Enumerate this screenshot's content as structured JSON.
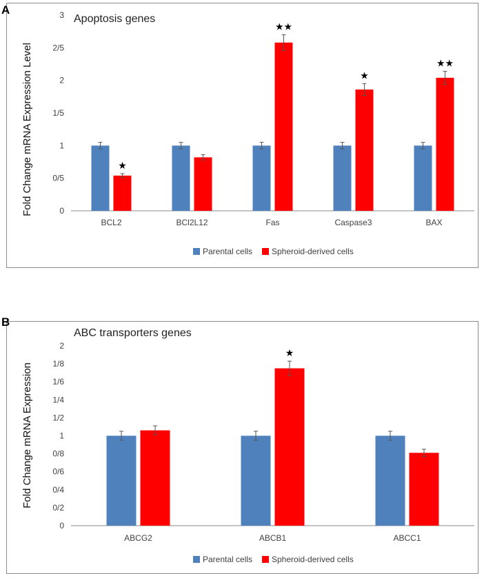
{
  "colors": {
    "parental": "#4f81bd",
    "spheroid": "#ff0000",
    "error": "#555555",
    "axis": "#888888",
    "text": "#404040"
  },
  "chart_data": [
    {
      "panel": "A",
      "type": "bar",
      "title": "Apoptosis genes",
      "xlabel": "",
      "ylabel": "Fold Change mRNA Expression Level",
      "categories": [
        "BCL2",
        "BCl2L12",
        "Fas",
        "Caspase3",
        "BAX"
      ],
      "ylim": [
        0,
        3
      ],
      "yticks": [
        0,
        0.5,
        1,
        1.5,
        2,
        2.5,
        3
      ],
      "ytick_labels": [
        "0",
        "0/5",
        "1",
        "1/5",
        "2",
        "2/5",
        "3"
      ],
      "series": [
        {
          "name": "Parental cells",
          "color": "#4f81bd",
          "values": [
            1,
            1,
            1,
            1,
            1
          ],
          "errors": [
            0.05,
            0.05,
            0.05,
            0.05,
            0.05
          ]
        },
        {
          "name": "Spheroid-derived cells",
          "color": "#ff0000",
          "values": [
            0.54,
            0.82,
            2.58,
            1.86,
            2.04
          ],
          "errors": [
            0.03,
            0.04,
            0.12,
            0.09,
            0.1
          ]
        }
      ],
      "significance": [
        "★",
        "",
        "★★",
        "★",
        "★★"
      ],
      "legend": "bottom-center",
      "grid": false
    },
    {
      "panel": "B",
      "type": "bar",
      "title": "ABC transporters genes",
      "xlabel": "",
      "ylabel": "Fold Change mRNA Expression",
      "categories": [
        "ABCG2",
        "ABCB1",
        "ABCC1"
      ],
      "ylim": [
        0,
        2
      ],
      "yticks": [
        0,
        0.2,
        0.4,
        0.6,
        0.8,
        1,
        1.2,
        1.4,
        1.6,
        1.8,
        2
      ],
      "ytick_labels": [
        "0",
        "0/2",
        "0/4",
        "0/6",
        "0/8",
        "1",
        "1/2",
        "1/4",
        "1/6",
        "1/8",
        "2"
      ],
      "series": [
        {
          "name": "Parental cells",
          "color": "#4f81bd",
          "values": [
            1,
            1,
            1
          ],
          "errors": [
            0.05,
            0.05,
            0.05
          ]
        },
        {
          "name": "Spheroid-derived cells",
          "color": "#ff0000",
          "values": [
            1.06,
            1.75,
            0.81
          ],
          "errors": [
            0.05,
            0.08,
            0.04
          ]
        }
      ],
      "significance": [
        "",
        "★",
        ""
      ],
      "legend": "bottom-center",
      "grid": false
    }
  ]
}
